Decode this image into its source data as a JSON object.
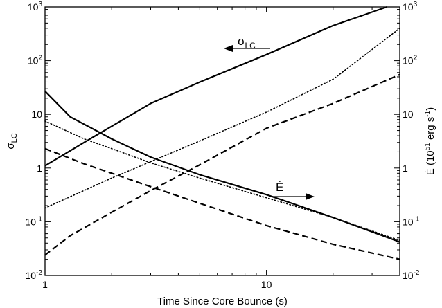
{
  "chart_data": {
    "type": "line",
    "xlabel": "Time Since Core Bounce (s)",
    "ylabel_left": "σ",
    "ylabel_left_sub": "LC",
    "ylabel_right_main": "Ė (10",
    "ylabel_right_sup1": "51",
    "ylabel_right_mid": " erg s",
    "ylabel_right_sup2": "-1",
    "ylabel_right_end": ")",
    "x_scale": "log",
    "y_scale": "log",
    "xlim": [
      1,
      40
    ],
    "ylim": [
      0.01,
      1000
    ],
    "x_ticks": [
      {
        "value": 1,
        "label": "1"
      },
      {
        "value": 10,
        "label": "10"
      }
    ],
    "y_ticks": [
      {
        "value": 0.01,
        "base": "10",
        "exp": "-2"
      },
      {
        "value": 0.1,
        "base": "10",
        "exp": "-1"
      },
      {
        "value": 1,
        "base": "1",
        "exp": ""
      },
      {
        "value": 10,
        "base": "10",
        "exp": ""
      },
      {
        "value": 100,
        "base": "10",
        "exp": "2"
      },
      {
        "value": 1000,
        "base": "10",
        "exp": "3"
      }
    ],
    "series": [
      {
        "style": "solid",
        "x": [
          1,
          1.5,
          2,
          3,
          5,
          10,
          20,
          35
        ],
        "y": [
          1.1,
          3.0,
          6.0,
          16,
          40,
          130,
          450,
          1000
        ]
      },
      {
        "style": "dotted",
        "x": [
          1,
          2,
          5,
          10,
          20,
          40
        ],
        "y": [
          0.18,
          0.65,
          3.2,
          11,
          45,
          400
        ]
      },
      {
        "style": "dashed",
        "x": [
          1,
          1.3,
          2,
          3,
          5,
          10,
          20,
          40
        ],
        "y": [
          0.024,
          0.055,
          0.15,
          0.38,
          1.15,
          5.5,
          16,
          55
        ]
      },
      {
        "style": "solid",
        "x": [
          1,
          1.3,
          2,
          3,
          5,
          10,
          20,
          40
        ],
        "y": [
          27,
          9,
          3.5,
          1.6,
          0.75,
          0.32,
          0.12,
          0.042
        ]
      },
      {
        "style": "dotted",
        "x": [
          1,
          1.5,
          2,
          3,
          5,
          10,
          20,
          40
        ],
        "y": [
          7.5,
          3.5,
          2.3,
          1.25,
          0.65,
          0.28,
          0.12,
          0.045
        ]
      },
      {
        "style": "dashed",
        "x": [
          1,
          1.5,
          2,
          3,
          5,
          10,
          20,
          40
        ],
        "y": [
          2.3,
          1.2,
          0.8,
          0.45,
          0.22,
          0.085,
          0.038,
          0.02
        ]
      }
    ],
    "annotations": {
      "sigma_label": "σ",
      "sigma_sub": "LC",
      "edot_label": "Ė"
    }
  }
}
